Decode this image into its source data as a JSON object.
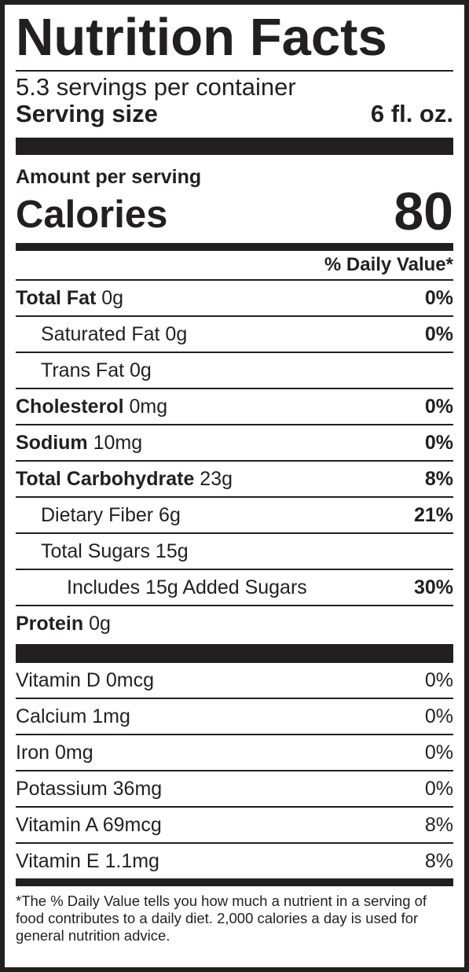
{
  "title": "Nutrition Facts",
  "servings_per_container": "5.3 servings per container",
  "serving_size": {
    "label": "Serving size",
    "value": "6 fl. oz."
  },
  "amount_per_serving": "Amount per serving",
  "calories": {
    "label": "Calories",
    "value": "80"
  },
  "daily_value_header": "% Daily Value*",
  "nutrients": [
    {
      "name": "Total Fat",
      "amount": "0g",
      "dv": "0%"
    },
    {
      "name": "Saturated Fat 0g",
      "dv": "0%"
    },
    {
      "name": "Trans Fat 0g",
      "dv": ""
    },
    {
      "name": "Cholesterol",
      "amount": "0mg",
      "dv": "0%"
    },
    {
      "name": "Sodium",
      "amount": "10mg",
      "dv": "0%"
    },
    {
      "name": "Total Carbohydrate",
      "amount": "23g",
      "dv": "8%"
    },
    {
      "name": "Dietary Fiber 6g",
      "dv": "21%"
    },
    {
      "name": "Total Sugars 15g",
      "dv": ""
    },
    {
      "name": "Includes 15g Added Sugars",
      "dv": "30%"
    },
    {
      "name": "Protein",
      "amount": "0g",
      "dv": ""
    }
  ],
  "vitamins": [
    {
      "name": "Vitamin D 0mcg",
      "dv": "0%"
    },
    {
      "name": "Calcium 1mg",
      "dv": "0%"
    },
    {
      "name": "Iron 0mg",
      "dv": "0%"
    },
    {
      "name": "Potassium 36mg",
      "dv": "0%"
    },
    {
      "name": "Vitamin A 69mcg",
      "dv": "8%"
    },
    {
      "name": "Vitamin E 1.1mg",
      "dv": "8%"
    }
  ],
  "footnote": "*The % Daily Value tells you how much a nutrient in a serving of food contributes to a daily diet. 2,000 calories a day is used for general nutrition advice."
}
